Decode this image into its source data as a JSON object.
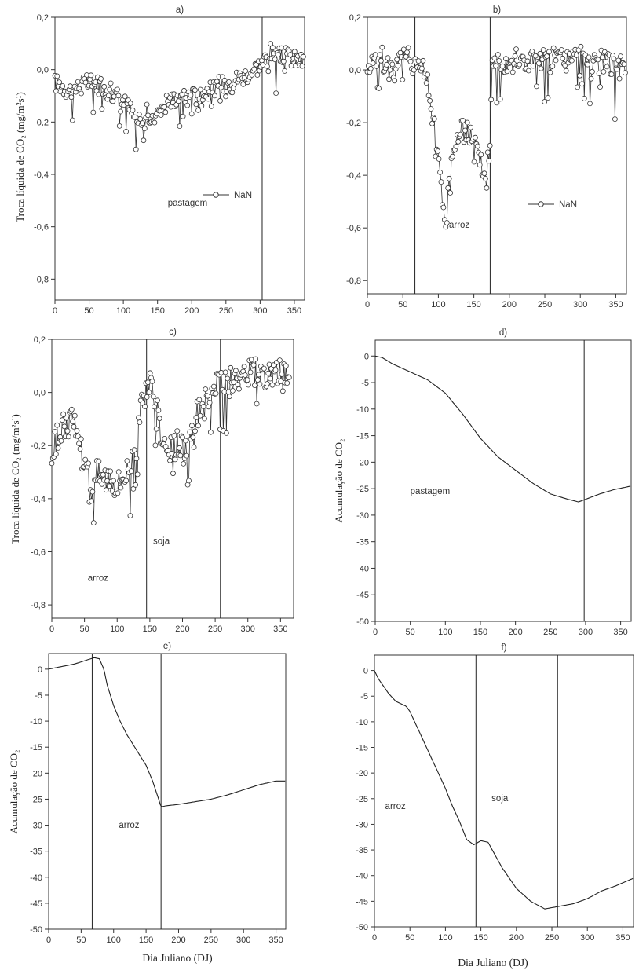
{
  "figure": {
    "xlabel_bottom_left": "Dia Juliano (DJ)",
    "xlabel_bottom_right": "Dia Juliano (DJ)"
  },
  "chart_data": [
    {
      "id": "a",
      "type": "scatter",
      "title": "a)",
      "ylabel": "Troca líquida de CO₂ (mg/m²s¹)",
      "xlim": [
        0,
        365
      ],
      "ylim": [
        -0.88,
        0.2
      ],
      "xticks": [
        0,
        50,
        100,
        150,
        200,
        250,
        300,
        350
      ],
      "yticks": [
        0.2,
        0,
        -0.2,
        -0.4,
        -0.6,
        -0.8
      ],
      "ytick_labels": [
        "0,2",
        "0,0",
        "-0,2",
        "-0,4",
        "-0,6",
        "-0,8"
      ],
      "vlines": [
        303
      ],
      "legend": {
        "label": "NaN",
        "position": "center-right"
      },
      "annotations": [
        {
          "text": "pastagem",
          "x": 165,
          "y": -0.52
        }
      ],
      "series": [
        {
          "x": [
            0,
            10,
            20,
            30,
            40,
            50,
            60,
            70,
            80,
            90,
            100,
            110,
            115,
            120,
            125,
            130,
            135,
            140,
            145,
            150,
            155,
            160,
            170,
            180,
            190,
            200,
            210,
            220,
            230,
            240,
            250,
            260,
            270,
            280,
            290,
            300,
            305,
            310,
            315,
            320,
            330,
            340,
            350,
            360
          ],
          "y": [
            -0.05,
            -0.06,
            -0.08,
            -0.07,
            -0.06,
            -0.05,
            -0.05,
            -0.06,
            -0.08,
            -0.1,
            -0.12,
            -0.15,
            -0.18,
            -0.2,
            -0.18,
            -0.21,
            -0.16,
            -0.22,
            -0.18,
            -0.15,
            -0.14,
            -0.12,
            -0.12,
            -0.1,
            -0.11,
            -0.1,
            -0.1,
            -0.08,
            -0.08,
            -0.06,
            -0.05,
            -0.04,
            -0.03,
            -0.02,
            0,
            0.02,
            0.03,
            0.05,
            0.07,
            0.05,
            0.05,
            0.05,
            0.04,
            0.03
          ],
          "spread": 0.07
        }
      ]
    },
    {
      "id": "b",
      "type": "scatter",
      "title": "b)",
      "ylabel": "",
      "xlim": [
        0,
        365
      ],
      "ylim": [
        -0.85,
        0.2
      ],
      "xticks": [
        0,
        50,
        100,
        150,
        200,
        250,
        300,
        350
      ],
      "yticks": [
        0.2,
        0,
        -0.2,
        -0.4,
        -0.6,
        -0.8
      ],
      "ytick_labels": [
        "0,2",
        "0,0",
        "-0,2",
        "-0,4",
        "-0,6",
        "-0,8"
      ],
      "vlines": [
        67,
        173
      ],
      "legend": {
        "label": "NaN",
        "position": "center-right"
      },
      "annotations": [
        {
          "text": "arroz",
          "x": 115,
          "y": -0.6
        }
      ],
      "series": [
        {
          "x": [
            0,
            20,
            40,
            60,
            68,
            75,
            82,
            88,
            93,
            97,
            100,
            105,
            110,
            115,
            120,
            130,
            140,
            150,
            160,
            165,
            170,
            173,
            176,
            180,
            200,
            220,
            240,
            260,
            280,
            300,
            320,
            340,
            355,
            362
          ],
          "y": [
            0.03,
            0.04,
            0.03,
            0.04,
            0.03,
            0.02,
            -0.02,
            -0.08,
            -0.15,
            -0.25,
            -0.35,
            -0.48,
            -0.55,
            -0.4,
            -0.3,
            -0.25,
            -0.22,
            -0.28,
            -0.35,
            -0.4,
            -0.35,
            -0.25,
            0.01,
            0.03,
            0.04,
            0.03,
            0.04,
            0.04,
            0.04,
            0.05,
            0.04,
            0.03,
            0.01,
            0.0
          ],
          "spread": 0.1
        }
      ]
    },
    {
      "id": "c",
      "type": "scatter",
      "title": "c)",
      "ylabel": "Troca líquida de CO₂ (mg/m²s¹)",
      "xlim": [
        0,
        370
      ],
      "ylim": [
        -0.85,
        0.2
      ],
      "xticks": [
        0,
        50,
        100,
        150,
        200,
        250,
        300,
        350
      ],
      "yticks": [
        0.2,
        0,
        -0.2,
        -0.4,
        -0.6,
        -0.8
      ],
      "ytick_labels": [
        "0,2",
        "0,0",
        "-0,2",
        "-0,4",
        "-0,6",
        "-0,8"
      ],
      "vlines": [
        145,
        258
      ],
      "annotations": [
        {
          "text": "arroz",
          "x": 55,
          "y": -0.71
        },
        {
          "text": "soja",
          "x": 155,
          "y": -0.57
        }
      ],
      "series": [
        {
          "x": [
            0,
            10,
            20,
            30,
            40,
            50,
            60,
            70,
            80,
            90,
            100,
            110,
            120,
            130,
            138,
            145,
            150,
            155,
            160,
            170,
            180,
            190,
            200,
            210,
            220,
            230,
            240,
            250,
            260,
            270,
            280,
            290,
            300,
            310,
            320,
            330,
            340,
            350,
            360,
            365
          ],
          "y": [
            -0.25,
            -0.15,
            -0.12,
            -0.1,
            -0.15,
            -0.28,
            -0.32,
            -0.3,
            -0.32,
            -0.3,
            -0.35,
            -0.3,
            -0.28,
            -0.2,
            -0.05,
            0.04,
            0.03,
            0.0,
            -0.05,
            -0.18,
            -0.22,
            -0.2,
            -0.22,
            -0.18,
            -0.1,
            -0.05,
            -0.02,
            0.01,
            0.02,
            0.03,
            0.04,
            0.06,
            0.07,
            0.08,
            0.08,
            0.07,
            0.07,
            0.06,
            0.05,
            0.04
          ],
          "spread": 0.12
        }
      ]
    },
    {
      "id": "d",
      "type": "line",
      "title": "d)",
      "ylabel": "Acumulação de CO₂",
      "xlim": [
        0,
        365
      ],
      "ylim": [
        -50,
        3
      ],
      "xticks": [
        0,
        50,
        100,
        150,
        200,
        250,
        300,
        350
      ],
      "yticks": [
        0,
        -5,
        -10,
        -15,
        -20,
        -25,
        -30,
        -35,
        -40,
        -45,
        -50
      ],
      "ytick_labels": [
        "0",
        "-5",
        "-10",
        "-15",
        "-20",
        "-25",
        "-30",
        "-35",
        "-40",
        "-45",
        "-50"
      ],
      "vlines": [
        298
      ],
      "annotations": [
        {
          "text": "pastagem",
          "x": 50,
          "y": -26
        }
      ],
      "series": [
        {
          "x": [
            0,
            10,
            25,
            50,
            75,
            100,
            125,
            150,
            175,
            200,
            225,
            250,
            275,
            290,
            300,
            320,
            340,
            365
          ],
          "y": [
            0,
            -0.3,
            -1.5,
            -3,
            -4.5,
            -7,
            -11,
            -15.5,
            -19,
            -21.5,
            -24,
            -26,
            -27,
            -27.5,
            -27,
            -26,
            -25.2,
            -24.5
          ]
        }
      ]
    },
    {
      "id": "e",
      "type": "line",
      "title": "e)",
      "ylabel": "Acumulação de CO₂",
      "xlim": [
        0,
        365
      ],
      "ylim": [
        -50,
        3
      ],
      "xticks": [
        0,
        50,
        100,
        150,
        200,
        250,
        300,
        350
      ],
      "yticks": [
        0,
        -5,
        -10,
        -15,
        -20,
        -25,
        -30,
        -35,
        -40,
        -45,
        -50
      ],
      "ytick_labels": [
        "0",
        "-5",
        "-10",
        "-15",
        "-20",
        "-25",
        "-30",
        "-35",
        "-40",
        "-45",
        "-50"
      ],
      "vlines": [
        67,
        173
      ],
      "annotations": [
        {
          "text": "arroz",
          "x": 108,
          "y": -30.5
        }
      ],
      "series": [
        {
          "x": [
            0,
            20,
            40,
            60,
            70,
            78,
            85,
            90,
            100,
            110,
            120,
            130,
            140,
            150,
            160,
            168,
            173,
            180,
            200,
            225,
            250,
            275,
            300,
            325,
            350,
            365
          ],
          "y": [
            0,
            0.5,
            1,
            1.8,
            2.2,
            2,
            0,
            -3,
            -7,
            -10,
            -12.5,
            -14.5,
            -16.5,
            -18.5,
            -21.5,
            -24.5,
            -26.5,
            -26.3,
            -26,
            -25.5,
            -25,
            -24.2,
            -23.2,
            -22.2,
            -21.5,
            -21.5
          ]
        }
      ]
    },
    {
      "id": "f",
      "type": "line",
      "title": "f)",
      "ylabel": "",
      "xlim": [
        0,
        365
      ],
      "ylim": [
        -50,
        3
      ],
      "xticks": [
        0,
        50,
        100,
        150,
        200,
        250,
        300,
        350
      ],
      "yticks": [
        0,
        -5,
        -10,
        -15,
        -20,
        -25,
        -30,
        -35,
        -40,
        -45,
        -50
      ],
      "ytick_labels": [
        "0",
        "-5",
        "-10",
        "-15",
        "-20",
        "-25",
        "-30",
        "-35",
        "-40",
        "-45",
        "-50"
      ],
      "vlines": [
        143,
        258
      ],
      "annotations": [
        {
          "text": "arroz",
          "x": 15,
          "y": -27
        },
        {
          "text": "soja",
          "x": 165,
          "y": -25.5
        }
      ],
      "series": [
        {
          "x": [
            0,
            5,
            10,
            20,
            30,
            45,
            50,
            60,
            70,
            80,
            90,
            100,
            110,
            120,
            130,
            140,
            150,
            160,
            170,
            180,
            190,
            200,
            220,
            240,
            260,
            280,
            300,
            320,
            340,
            365
          ],
          "y": [
            0,
            -1.5,
            -2.5,
            -4.5,
            -6,
            -7,
            -8,
            -11,
            -14,
            -17,
            -20,
            -23,
            -26.5,
            -29.5,
            -33,
            -34,
            -33.2,
            -33.5,
            -36,
            -38.5,
            -40.5,
            -42.5,
            -45,
            -46.5,
            -46,
            -45.5,
            -44.5,
            -43,
            -42,
            -40.5
          ]
        }
      ]
    }
  ]
}
